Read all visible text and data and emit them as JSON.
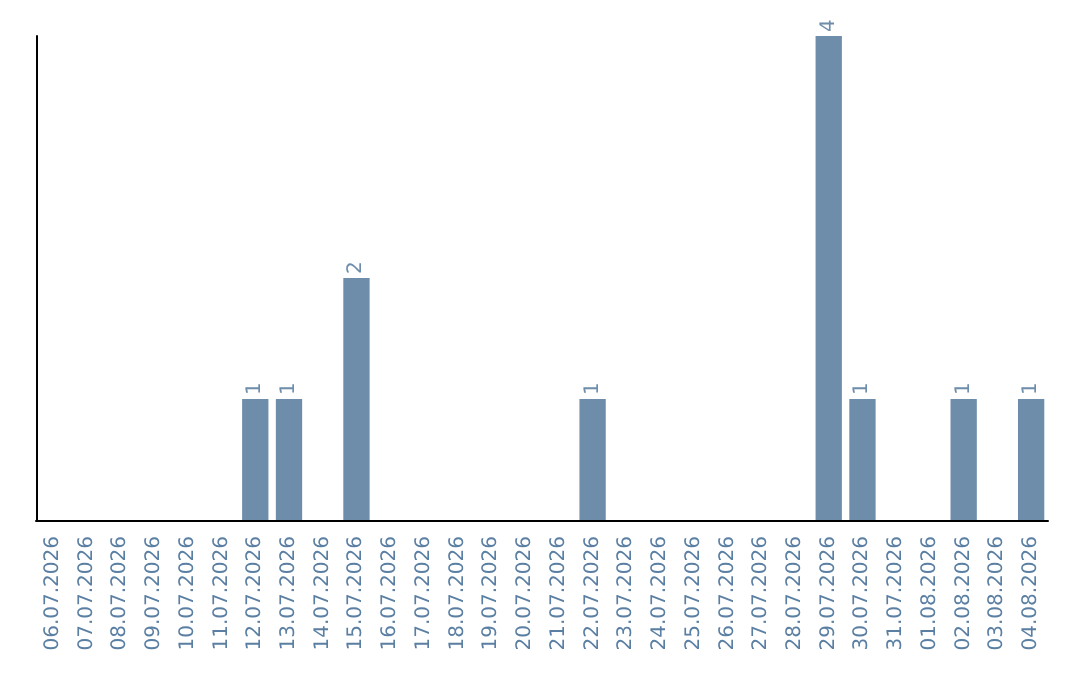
{
  "chart_data": {
    "type": "bar",
    "categories": [
      "06.07.2026",
      "07.07.2026",
      "08.07.2026",
      "09.07.2026",
      "10.07.2026",
      "11.07.2026",
      "12.07.2026",
      "13.07.2026",
      "14.07.2026",
      "15.07.2026",
      "16.07.2026",
      "17.07.2026",
      "18.07.2026",
      "19.07.2026",
      "20.07.2026",
      "21.07.2026",
      "22.07.2026",
      "23.07.2026",
      "24.07.2026",
      "25.07.2026",
      "26.07.2026",
      "27.07.2026",
      "28.07.2026",
      "29.07.2026",
      "30.07.2026",
      "31.07.2026",
      "01.08.2026",
      "02.08.2026",
      "03.08.2026",
      "04.08.2026"
    ],
    "values": [
      0,
      0,
      0,
      0,
      0,
      0,
      1,
      1,
      0,
      2,
      0,
      0,
      0,
      0,
      0,
      0,
      1,
      0,
      0,
      0,
      0,
      0,
      0,
      4,
      1,
      0,
      0,
      1,
      0,
      1
    ],
    "value_labels": [
      null,
      null,
      null,
      null,
      null,
      null,
      "1",
      "1",
      null,
      "2",
      null,
      null,
      null,
      null,
      null,
      null,
      "1",
      null,
      null,
      null,
      null,
      null,
      null,
      "4",
      "1",
      null,
      null,
      "1",
      null,
      "1"
    ],
    "color": "#6d8dab",
    "tick_labels": "x",
    "grid": false
  }
}
